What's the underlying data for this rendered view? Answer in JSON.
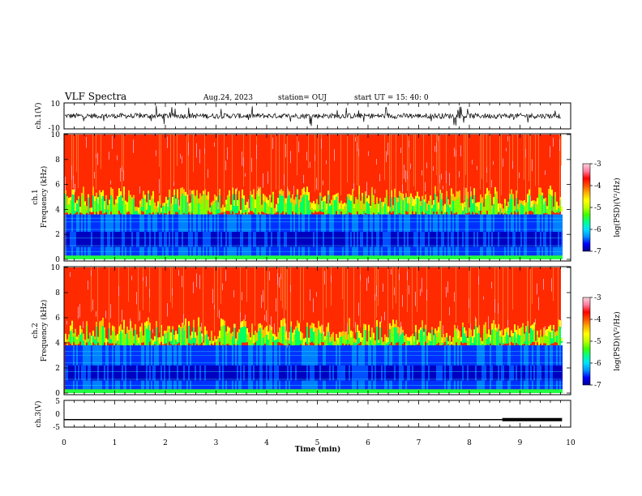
{
  "header": {
    "title": "VLF Spectra",
    "date": "Aug.24, 2023",
    "station": "station= OUJ",
    "start": "start  UT =  15: 40: 0"
  },
  "colorbar": {
    "label": "log(PSD)(V²/Hz)",
    "ticks": [
      "-3",
      "-4",
      "-5",
      "-6",
      "-7"
    ],
    "colors": [
      "#000090",
      "#0000ff",
      "#0090ff",
      "#00e0ff",
      "#00ff90",
      "#40ff00",
      "#c0ff00",
      "#ffff00",
      "#ffb000",
      "#ff5000",
      "#ff0000",
      "#ff80a0",
      "#ffd0dc"
    ]
  },
  "chart_data": [
    {
      "type": "line",
      "ylabel": "ch.1(V)",
      "ylim": [
        -10,
        10
      ],
      "yticks": [
        "10",
        "-10"
      ],
      "xlim": [
        0,
        10
      ],
      "trace": {
        "baseline": 0,
        "description_note": ""
      }
    },
    {
      "type": "heatmap",
      "ylabel": "ch.1\nFrequency (kHz)",
      "ylabel_top": "ch.1",
      "ylabel_bottom": "Frequency (kHz)",
      "ylim": [
        0,
        10
      ],
      "yticks": [
        "0",
        "2",
        "4",
        "6",
        "8",
        "10"
      ],
      "xlim": [
        0,
        9.83
      ],
      "clim": [
        -7,
        -3
      ],
      "quiet_band_khz": [
        0.3,
        3.6
      ],
      "noise_floor_khz": 4.5
    },
    {
      "type": "heatmap",
      "ylabel_top": "ch.2",
      "ylabel_bottom": "Frequency (kHz)",
      "ylim": [
        0,
        10
      ],
      "yticks": [
        "0",
        "2",
        "4",
        "6",
        "8",
        "10"
      ],
      "xlim": [
        0,
        9.83
      ],
      "clim": [
        -7,
        -3
      ],
      "quiet_band_khz": [
        0.3,
        3.8
      ],
      "noise_floor_khz": 4.6
    },
    {
      "type": "line",
      "ylabel": "ch.3(V)",
      "ylim": [
        -5,
        5
      ],
      "yticks": [
        "5",
        "0",
        "-5"
      ],
      "xlim": [
        0,
        10
      ],
      "x": [
        0,
        8.65,
        8.65,
        9.83
      ],
      "y": [
        -2.2,
        -2.2,
        -2.2,
        -2.2
      ],
      "thick_from": 8.65
    }
  ],
  "xaxis": {
    "label": "Time  (min)",
    "ticks": [
      "0",
      "1",
      "2",
      "3",
      "4",
      "5",
      "6",
      "7",
      "8",
      "9",
      "10"
    ],
    "range": [
      0,
      10
    ]
  }
}
